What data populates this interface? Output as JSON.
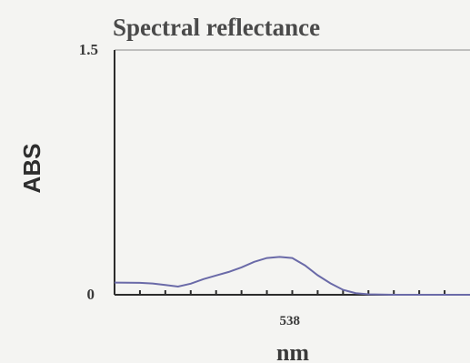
{
  "chart_data": {
    "type": "line",
    "title": "Spectral reflectance",
    "xlabel": "nm",
    "ylabel": "ABS",
    "xlim": [
      400,
      680
    ],
    "ylim": [
      0,
      1.5
    ],
    "xticks": [
      538
    ],
    "yticks": [
      0,
      1.5
    ],
    "grid": false,
    "series": [
      {
        "color": "#6a6aa8",
        "x": [
          400,
          420,
          430,
          440,
          450,
          460,
          470,
          480,
          490,
          500,
          510,
          520,
          530,
          540,
          550,
          560,
          570,
          580,
          590,
          600,
          610,
          620,
          640,
          660,
          680
        ],
        "y": [
          0.075,
          0.073,
          0.069,
          0.06,
          0.05,
          0.068,
          0.096,
          0.118,
          0.14,
          0.168,
          0.202,
          0.225,
          0.232,
          0.225,
          0.18,
          0.12,
          0.07,
          0.03,
          0.01,
          0.003,
          0.001,
          0.0,
          0.0,
          0.0,
          0.0
        ]
      }
    ]
  }
}
